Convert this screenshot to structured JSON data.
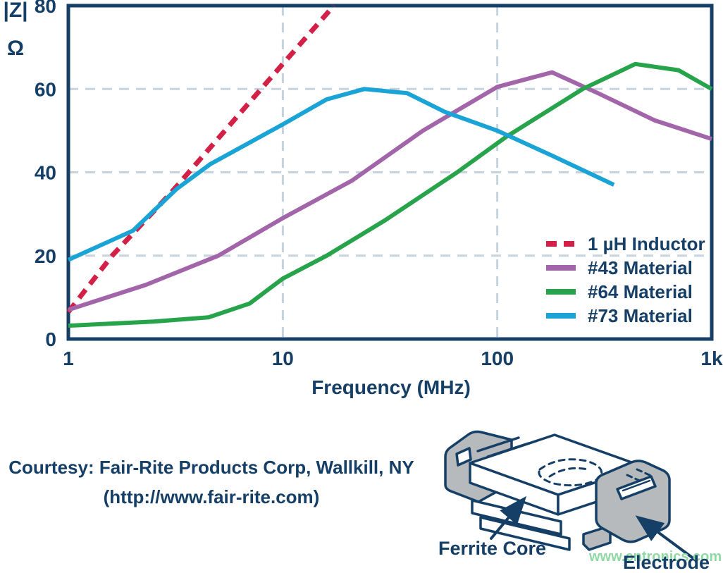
{
  "chart_data": {
    "type": "line",
    "title": "",
    "xlabel": "Frequency (MHz)",
    "ylabel_line1": "|Z|",
    "ylabel_line2": "Ω",
    "x_scale": "log",
    "xlim": [
      1,
      1000
    ],
    "ylim": [
      0,
      80
    ],
    "grid": true,
    "legend_position": "inside-right",
    "x_ticks": [
      {
        "value": 1,
        "label": "1"
      },
      {
        "value": 10,
        "label": "10"
      },
      {
        "value": 100,
        "label": "100"
      },
      {
        "value": 1000,
        "label": "1k"
      }
    ],
    "y_ticks": [
      {
        "value": 0,
        "label": "0"
      },
      {
        "value": 20,
        "label": "20"
      },
      {
        "value": 40,
        "label": "40"
      },
      {
        "value": 60,
        "label": "60"
      },
      {
        "value": 80,
        "label": "80"
      }
    ],
    "series": [
      {
        "name": "1 µH Inductor",
        "color": "#d22046",
        "dashed": true,
        "points": [
          [
            1,
            6.5
          ],
          [
            1.6,
            20
          ],
          [
            3,
            35
          ],
          [
            10,
            66
          ],
          [
            17.3,
            80
          ]
        ]
      },
      {
        "name": "#43 Material",
        "color": "#a365a9",
        "dashed": false,
        "points": [
          [
            1,
            7
          ],
          [
            2.3,
            13
          ],
          [
            5,
            20
          ],
          [
            10,
            29
          ],
          [
            21,
            38
          ],
          [
            45,
            50
          ],
          [
            100,
            60.5
          ],
          [
            180,
            64
          ],
          [
            295,
            59
          ],
          [
            540,
            52.5
          ],
          [
            1000,
            48
          ]
        ]
      },
      {
        "name": "#64 Material",
        "color": "#27a44b",
        "dashed": false,
        "points": [
          [
            1,
            3.2
          ],
          [
            2.5,
            4.2
          ],
          [
            4.5,
            5.2
          ],
          [
            7,
            8.5
          ],
          [
            10,
            14.5
          ],
          [
            16,
            20
          ],
          [
            30,
            28.5
          ],
          [
            65,
            40
          ],
          [
            110,
            48.5
          ],
          [
            250,
            60
          ],
          [
            440,
            66
          ],
          [
            700,
            64.5
          ],
          [
            1000,
            60
          ]
        ]
      },
      {
        "name": "#73 Material",
        "color": "#1aa3d5",
        "dashed": false,
        "points": [
          [
            1,
            19
          ],
          [
            2,
            26
          ],
          [
            3.2,
            36
          ],
          [
            4.6,
            42
          ],
          [
            10,
            51.5
          ],
          [
            16,
            57.5
          ],
          [
            24,
            60
          ],
          [
            38,
            59
          ],
          [
            57,
            54.5
          ],
          [
            100,
            50
          ],
          [
            180,
            44
          ],
          [
            350,
            37
          ]
        ]
      }
    ]
  },
  "footer": {
    "courtesy_line1": "Courtesy: Fair-Rite Products Corp, Wallkill, NY",
    "courtesy_line2": "(http://www.fair-rite.com)"
  },
  "diagram": {
    "label_ferrite": "Ferrite Core",
    "label_electrode": "Electrode",
    "watermark": "www.cntronics.com"
  },
  "colors": {
    "navy": "#153f66",
    "grid": "#c6d3dc",
    "electrode_gray": "#b6babd",
    "watermark_green": "#8fd9a5"
  }
}
